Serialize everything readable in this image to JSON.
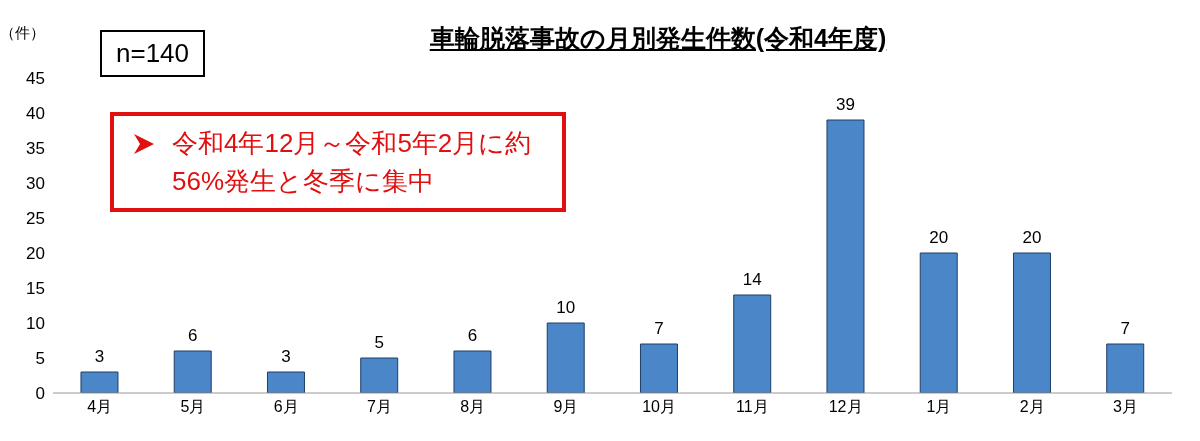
{
  "chart_data": {
    "type": "bar",
    "title": "車輪脱落事故の月別発生件数(令和4年度)",
    "ylabel": "（件）",
    "annotations": [
      "n=140",
      "令和4年12月～令和5年2月に約56%発生と冬季に集中"
    ],
    "categories": [
      "4月",
      "5月",
      "6月",
      "7月",
      "8月",
      "9月",
      "10月",
      "11月",
      "12月",
      "1月",
      "2月",
      "3月"
    ],
    "values": [
      3,
      6,
      3,
      5,
      6,
      10,
      7,
      14,
      39,
      20,
      20,
      7
    ],
    "color": "#4a86c8",
    "ylim": [
      0,
      45
    ],
    "yticks": [
      0,
      5,
      10,
      15,
      20,
      25,
      30,
      35,
      40,
      45
    ],
    "data_labels": true
  }
}
